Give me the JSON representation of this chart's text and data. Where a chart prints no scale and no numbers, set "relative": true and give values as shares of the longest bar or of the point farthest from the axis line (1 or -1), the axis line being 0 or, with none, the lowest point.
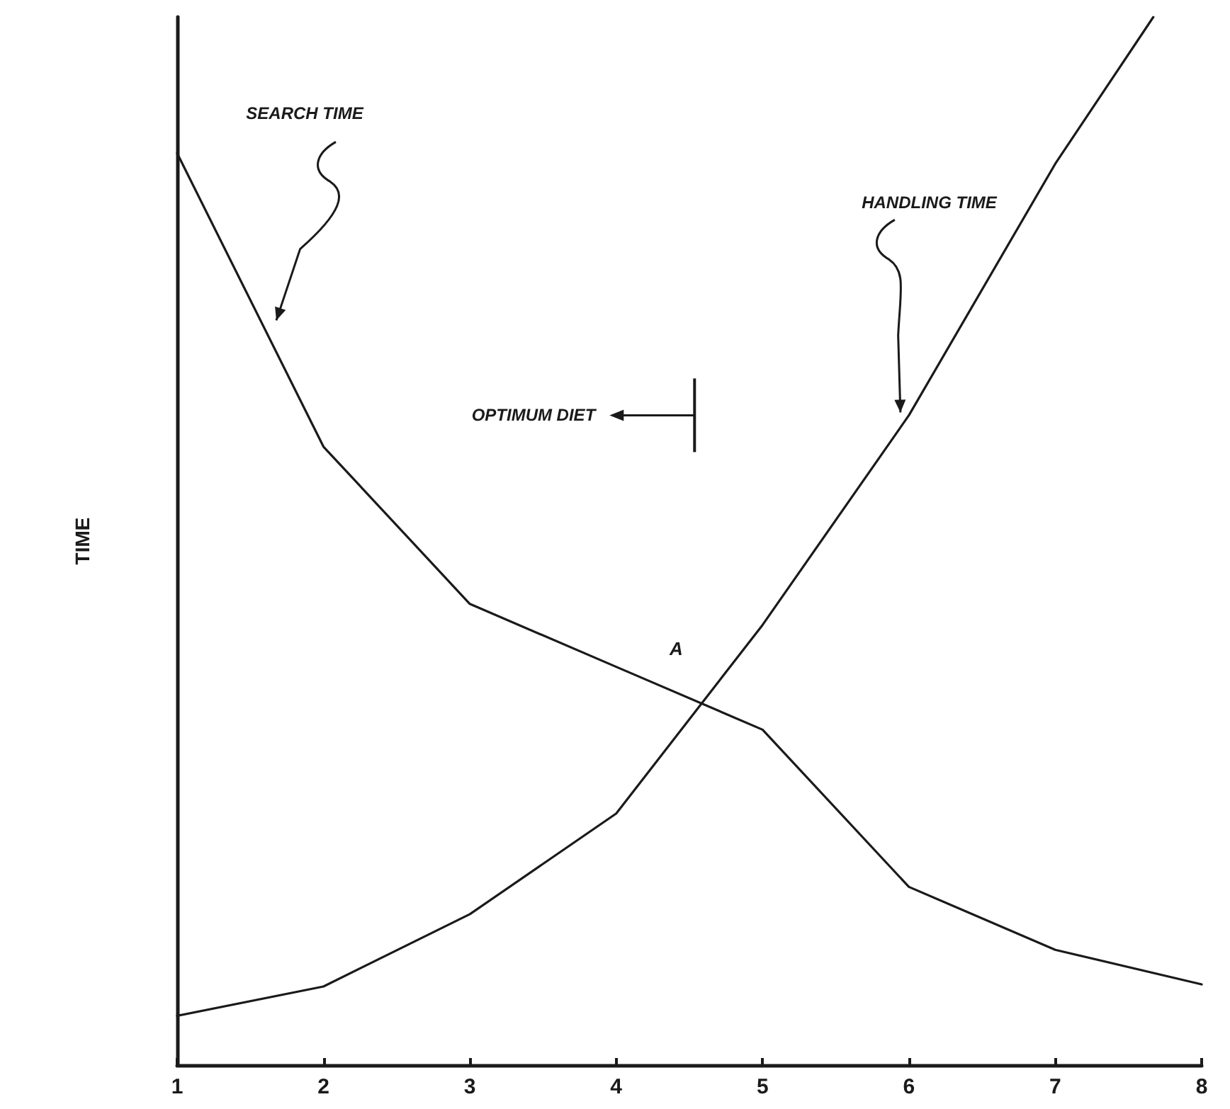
{
  "chart_data": {
    "type": "line",
    "relative": true,
    "ylabel": "TIME",
    "x": [
      1,
      2,
      3,
      4,
      5,
      6,
      7,
      8
    ],
    "xlim": [
      1,
      8
    ],
    "xticks": [
      1,
      2,
      3,
      4,
      5,
      6,
      7,
      8
    ],
    "grid": false,
    "legend": false,
    "marker": "none",
    "line_style": "solid",
    "series": [
      {
        "name": "SEARCH TIME",
        "color": "#1a1a1a",
        "values": [
          0.87,
          0.59,
          0.44,
          0.38,
          0.32,
          0.17,
          0.11,
          0.077
        ]
      },
      {
        "name": "HANDLING TIME",
        "color": "#1a1a1a",
        "x": [
          1,
          2,
          3,
          4,
          5,
          6,
          7,
          7.67
        ],
        "values": [
          0.047,
          0.075,
          0.144,
          0.24,
          0.42,
          0.62,
          0.86,
          1
        ]
      }
    ],
    "annotations": [
      "OPTIMUM DIET",
      "A"
    ]
  }
}
